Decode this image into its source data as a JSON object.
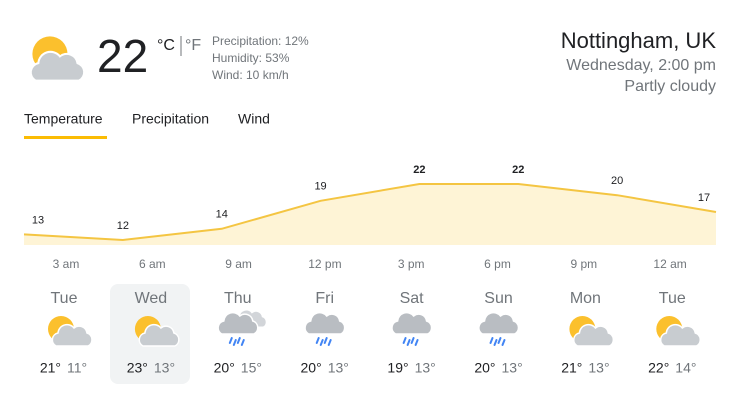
{
  "current": {
    "temperature": 22,
    "unit_c": "°C",
    "unit_f": "°F",
    "precipitation": "Precipitation: 12%",
    "humidity": "Humidity: 53%",
    "wind": "Wind: 10 km/h"
  },
  "location": {
    "place": "Nottingham, UK",
    "time": "Wednesday, 2:00 pm",
    "condition": "Partly cloudy"
  },
  "tabs": [
    "Temperature",
    "Precipitation",
    "Wind"
  ],
  "chart_data": {
    "type": "area",
    "categories": [
      "3 am",
      "6 am",
      "9 am",
      "12 pm",
      "3 pm",
      "6 pm",
      "9 pm",
      "12 am"
    ],
    "values": [
      13,
      12,
      14,
      19,
      22,
      22,
      20,
      17
    ],
    "color": "#f4c542",
    "fill": "#fef4d6"
  },
  "days": [
    {
      "day": "Tue",
      "high": "21°",
      "low": "11°"
    },
    {
      "day": "Wed",
      "high": "23°",
      "low": "13°"
    },
    {
      "day": "Thu",
      "high": "20°",
      "low": "15°"
    },
    {
      "day": "Fri",
      "high": "20°",
      "low": "13°"
    },
    {
      "day": "Sat",
      "high": "19°",
      "low": "13°"
    },
    {
      "day": "Sun",
      "high": "20°",
      "low": "13°"
    },
    {
      "day": "Mon",
      "high": "21°",
      "low": "13°"
    },
    {
      "day": "Tue",
      "high": "22°",
      "low": "14°"
    }
  ]
}
